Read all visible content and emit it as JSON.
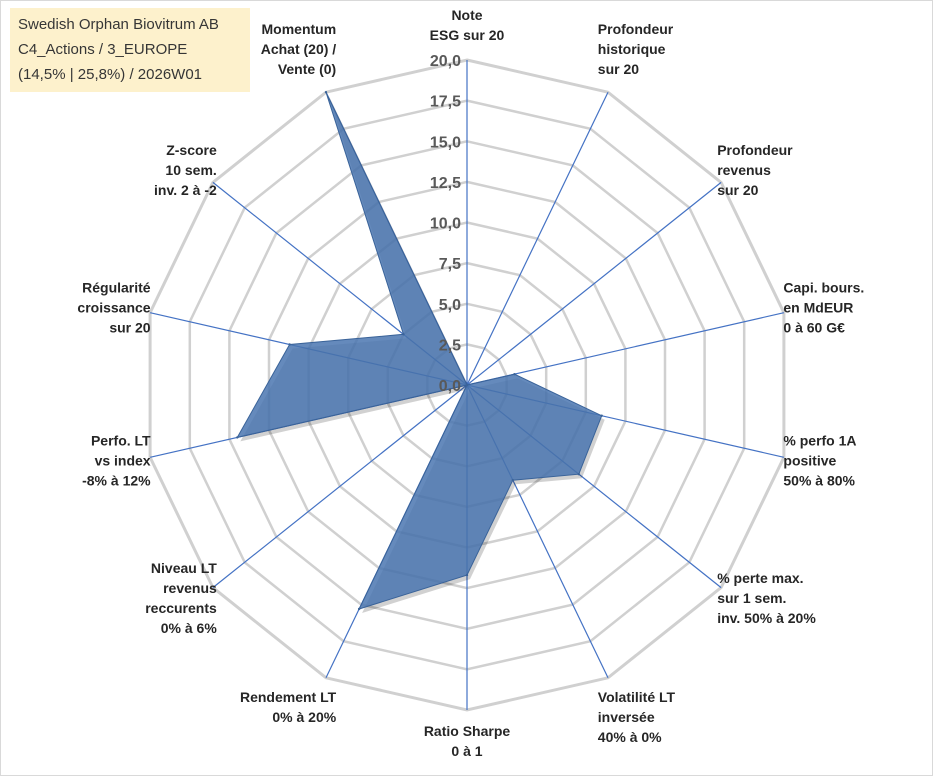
{
  "info": {
    "line1": "Swedish Orphan Biovitrum AB",
    "line2": "C4_Actions / 3_EUROPE",
    "line3": "(14,5% | 25,8%) / 2026W01"
  },
  "chart_data": {
    "type": "radar",
    "title": "",
    "rmax": 20,
    "tick_values": [
      0,
      2.5,
      5,
      7.5,
      10,
      12.5,
      15,
      17.5,
      20
    ],
    "tick_labels": [
      "0,0",
      "2,5",
      "5,0",
      "7,5",
      "10,0",
      "12,5",
      "15,0",
      "17,5",
      "20,0"
    ],
    "axes": [
      {
        "label": [
          "Note",
          "ESG sur 20"
        ],
        "value": 0
      },
      {
        "label": [
          "Profondeur",
          "historique",
          "sur 20"
        ],
        "value": 0
      },
      {
        "label": [
          "Profondeur",
          "revenus",
          "sur 20"
        ],
        "value": 0
      },
      {
        "label": [
          "Capi. bours.",
          "en MdEUR",
          "0 à 60 G€"
        ],
        "value": 3.0
      },
      {
        "label": [
          "% perfo 1A",
          "positive",
          "50% à 80%"
        ],
        "value": 8.5
      },
      {
        "label": [
          "% perte max.",
          "sur 1 sem.",
          "inv. 50% à 20%"
        ],
        "value": 8.8
      },
      {
        "label": [
          "Volatilité LT",
          "inversée",
          "40% à 0%"
        ],
        "value": 6.5
      },
      {
        "label": [
          "Ratio Sharpe",
          "0 à 1"
        ],
        "value": 11.7
      },
      {
        "label": [
          "Rendement LT",
          "0% à 20%"
        ],
        "value": 15.3
      },
      {
        "label": [
          "Niveau LT",
          "revenus",
          "reccurents",
          "0% à 6%"
        ],
        "value": 0
      },
      {
        "label": [
          "Perfo. LT",
          "vs index",
          "-8% à 12%"
        ],
        "value": 14.5
      },
      {
        "label": [
          "Régularité",
          "croissance",
          "sur 20"
        ],
        "value": 11.2
      },
      {
        "label": [
          "Z-score",
          "10 sem.",
          "inv. 2 à -2"
        ],
        "value": 5.0
      },
      {
        "label": [
          "Momentum",
          "Achat (20) /",
          "Vente (0)"
        ],
        "value": 20.0
      }
    ],
    "series": [
      {
        "name": "Swedish Orphan Biovitrum AB",
        "color": "#4a76b0"
      }
    ]
  }
}
